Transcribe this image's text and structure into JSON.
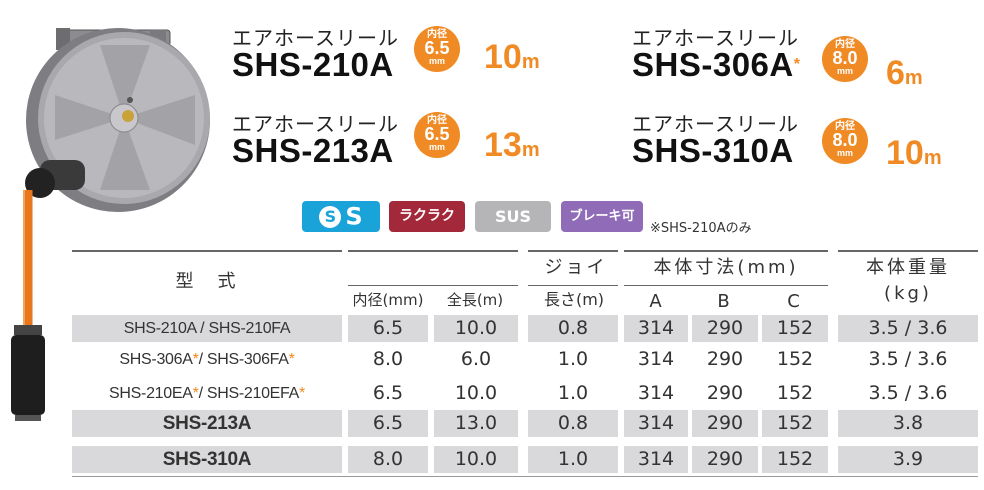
{
  "models": [
    {
      "kana": "エアホースリール",
      "name": "SHS-210A",
      "star": "",
      "badge_top": "内径",
      "badge_value": "6.5",
      "badge_unit": "mm",
      "length": "10",
      "length_unit": "m"
    },
    {
      "kana": "エアホースリール",
      "name": "SHS-306A",
      "star": "*",
      "badge_top": "内径",
      "badge_value": "8.0",
      "badge_unit": "mm",
      "length": "6",
      "length_unit": "m"
    },
    {
      "kana": "エアホースリール",
      "name": "SHS-213A",
      "star": "",
      "badge_top": "内径",
      "badge_value": "6.5",
      "badge_unit": "mm",
      "length": "13",
      "length_unit": "m"
    },
    {
      "kana": "エアホースリール",
      "name": "SHS-310A",
      "star": "",
      "badge_top": "内径",
      "badge_value": "8.0",
      "badge_unit": "mm",
      "length": "10",
      "length_unit": "m"
    }
  ],
  "tags": [
    {
      "label": "S",
      "icon": "ss-logo-icon",
      "color": "#1aa3d9"
    },
    {
      "label": "ラクラク",
      "color": "#a3283a"
    },
    {
      "label": "SUS",
      "color": "#b5b5b7"
    },
    {
      "label": "ブレーキ可",
      "color": "#8f6bb8"
    }
  ],
  "note": "※SHS-210Aのみ",
  "table": {
    "headers": {
      "model": "型　式",
      "inner": "内径(mm)",
      "length": "全長(m)",
      "joint_top": "ジョイ",
      "joint_bottom": "長さ(m)",
      "dims": "本体寸法(mm)",
      "a": "A",
      "b": "B",
      "c": "C",
      "weight_top": "本体重量",
      "weight_bottom": "(kg)"
    },
    "rows": [
      {
        "model_a": "SHS-210A / SHS-210FA",
        "inner": "6.5",
        "length": "10.0",
        "joint": "0.8",
        "a": "314",
        "b": "290",
        "c": "152",
        "weight": "3.5 / 3.6"
      },
      {
        "model_a": "SHS-306A",
        "model_b": "/ SHS-306FA",
        "inner": "8.0",
        "length": "6.0",
        "joint": "1.0",
        "a": "314",
        "b": "290",
        "c": "152",
        "weight": "3.5 / 3.6"
      },
      {
        "model_a": "SHS-210EA",
        "model_b": "/ SHS-210EFA",
        "inner": "6.5",
        "length": "10.0",
        "joint": "1.0",
        "a": "314",
        "b": "290",
        "c": "152",
        "weight": "3.5 / 3.6"
      },
      {
        "model_a": "SHS-213A",
        "inner": "6.5",
        "length": "13.0",
        "joint": "0.8",
        "a": "314",
        "b": "290",
        "c": "152",
        "weight": "3.8"
      },
      {
        "model_a": "SHS-310A",
        "inner": "8.0",
        "length": "10.0",
        "joint": "1.0",
        "a": "314",
        "b": "290",
        "c": "152",
        "weight": "3.9"
      }
    ],
    "asterisk": "*"
  },
  "colors": {
    "accent": "#f08a24",
    "shade": "#d9d9db"
  }
}
